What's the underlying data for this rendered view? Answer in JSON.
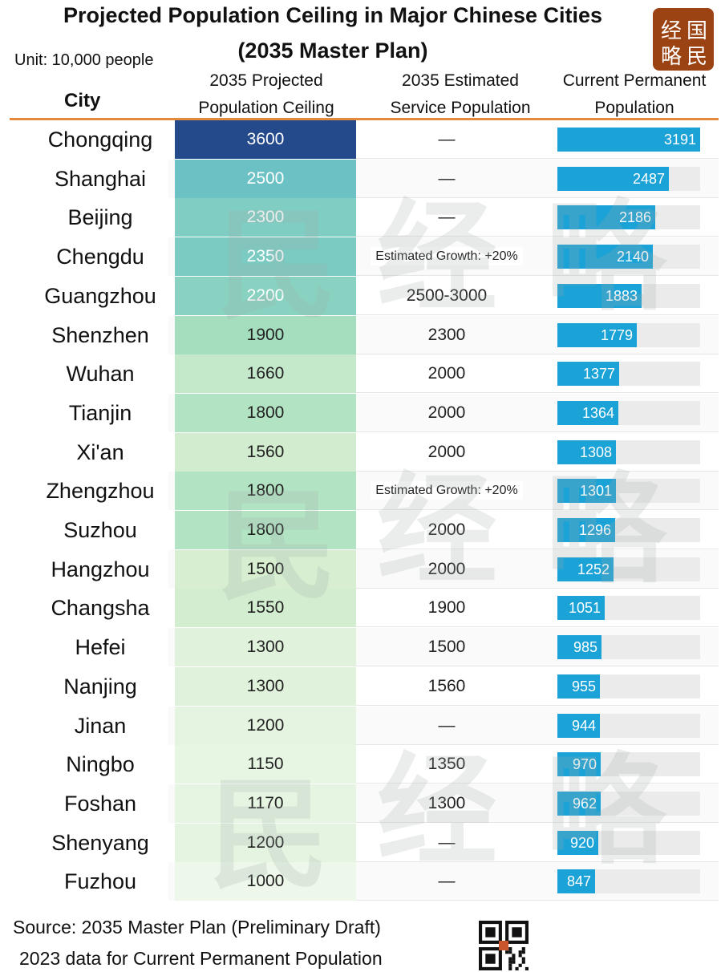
{
  "title_line1": "Projected Population Ceiling in Major Chinese Cities",
  "title_line2": "(2035 Master Plan)",
  "unit": "Unit: 10,000 people",
  "headers": {
    "city": "City",
    "ceiling_l1": "2035 Projected",
    "ceiling_l2": "Population Ceiling",
    "service_l1": "2035 Estimated",
    "service_l2": "Service Population",
    "current_l1": "Current Permanent",
    "current_l2": "Population"
  },
  "logo": {
    "chars": [
      "经",
      "国",
      "略",
      "民"
    ],
    "color": "#9c4313"
  },
  "watermark_chars": [
    "民",
    "经",
    "略"
  ],
  "footer": {
    "source": "Source: 2035 Master Plan (Preliminary Draft)",
    "data_note": "2023 data for Current Permanent Population"
  },
  "colors": {
    "header_rule": "#e58a3a",
    "bar": "#1ba2d6",
    "ceiling_high": "#244a8c",
    "ceiling_low": "#eef8ea"
  },
  "chart_data": {
    "type": "table",
    "columns": [
      "City",
      "2035 Projected Population Ceiling",
      "2035 Estimated Service Population",
      "Current Permanent Population"
    ],
    "bar_max": 3191,
    "rows": [
      {
        "city": "Chongqing",
        "ceiling": 3600,
        "service": "—",
        "current": 3191
      },
      {
        "city": "Shanghai",
        "ceiling": 2500,
        "service": "—",
        "current": 2487
      },
      {
        "city": "Beijing",
        "ceiling": 2300,
        "service": "—",
        "current": 2186
      },
      {
        "city": "Chengdu",
        "ceiling": 2350,
        "service": "Estimated Growth: +20%",
        "current": 2140
      },
      {
        "city": "Guangzhou",
        "ceiling": 2200,
        "service": "2500-3000",
        "current": 1883
      },
      {
        "city": "Shenzhen",
        "ceiling": 1900,
        "service": "2300",
        "current": 1779
      },
      {
        "city": "Wuhan",
        "ceiling": 1660,
        "service": "2000",
        "current": 1377
      },
      {
        "city": "Tianjin",
        "ceiling": 1800,
        "service": "2000",
        "current": 1364
      },
      {
        "city": "Xi'an",
        "ceiling": 1560,
        "service": "2000",
        "current": 1308
      },
      {
        "city": "Zhengzhou",
        "ceiling": 1800,
        "service": "Estimated Growth: +20%",
        "current": 1301
      },
      {
        "city": "Suzhou",
        "ceiling": 1800,
        "service": "2000",
        "current": 1296
      },
      {
        "city": "Hangzhou",
        "ceiling": 1500,
        "service": "2000",
        "current": 1252
      },
      {
        "city": "Changsha",
        "ceiling": 1550,
        "service": "1900",
        "current": 1051
      },
      {
        "city": "Hefei",
        "ceiling": 1300,
        "service": "1500",
        "current": 985
      },
      {
        "city": "Nanjing",
        "ceiling": 1300,
        "service": "1560",
        "current": 955
      },
      {
        "city": "Jinan",
        "ceiling": 1200,
        "service": "—",
        "current": 944
      },
      {
        "city": "Ningbo",
        "ceiling": 1150,
        "service": "1350",
        "current": 970
      },
      {
        "city": "Foshan",
        "ceiling": 1170,
        "service": "1300",
        "current": 962
      },
      {
        "city": "Shenyang",
        "ceiling": 1200,
        "service": "—",
        "current": 920
      },
      {
        "city": "Fuzhou",
        "ceiling": 1000,
        "service": "—",
        "current": 847
      }
    ]
  }
}
